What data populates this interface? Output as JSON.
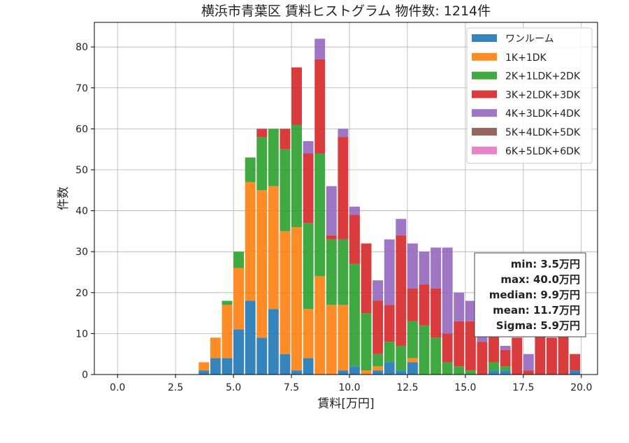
{
  "chart_data": {
    "type": "bar",
    "stacked": true,
    "title": "横浜市青葉区 賃料ヒストグラム 物件数: 1214件",
    "xlabel": "賃料[万円]",
    "ylabel": "件数",
    "xlim": [
      -1.0,
      20.7
    ],
    "ylim": [
      0,
      86
    ],
    "xticks": [
      0,
      2.5,
      5,
      7.5,
      10,
      12.5,
      15,
      17.5,
      20
    ],
    "xtick_labels": [
      "0.0",
      "2.5",
      "5.0",
      "7.5",
      "10.0",
      "12.5",
      "15.0",
      "17.5",
      "20.0"
    ],
    "yticks": [
      0,
      10,
      20,
      30,
      40,
      50,
      60,
      70,
      80
    ],
    "ytick_labels": [
      "0",
      "10",
      "20",
      "30",
      "40",
      "50",
      "60",
      "70",
      "80"
    ],
    "grid": true,
    "legend_position": "top-right",
    "bin_width": 0.5,
    "bin_starts": [
      3.5,
      4.0,
      4.5,
      5.0,
      5.5,
      6.0,
      6.5,
      7.0,
      7.5,
      8.0,
      8.5,
      9.0,
      9.5,
      10.0,
      10.5,
      11.0,
      11.5,
      12.0,
      12.5,
      13.0,
      13.5,
      14.0,
      14.5,
      15.0,
      15.5,
      16.0,
      16.5,
      17.0,
      17.5,
      18.0,
      18.5,
      19.0,
      19.5
    ],
    "series": [
      {
        "name": "ワンルーム",
        "color": "#1f77b4",
        "values": [
          1,
          4,
          4,
          11,
          18,
          9,
          16,
          5,
          1,
          4,
          0,
          0,
          1,
          2,
          0,
          1,
          3,
          1,
          3,
          0,
          0,
          0,
          0,
          0,
          0,
          1,
          1,
          0,
          0,
          0,
          0,
          0,
          1
        ]
      },
      {
        "name": "1K+1DK",
        "color": "#ff7f0e",
        "values": [
          2,
          5,
          13,
          15,
          29,
          36,
          30,
          30,
          35,
          12,
          24,
          17,
          16,
          0,
          1,
          1,
          0,
          0,
          1,
          0,
          0,
          0,
          0,
          0,
          0,
          0,
          0,
          0,
          0,
          0,
          0,
          0,
          0
        ]
      },
      {
        "name": "2K+1LDK+2DK",
        "color": "#2ca02c",
        "values": [
          0,
          0,
          1,
          4,
          6,
          13,
          14,
          20,
          25,
          21,
          30,
          16,
          16,
          25,
          14,
          3,
          5,
          6,
          9,
          12,
          9,
          3,
          2,
          1,
          0,
          2,
          1,
          0,
          0,
          0,
          0,
          0,
          0
        ]
      },
      {
        "name": "3K+2LDK+3DK",
        "color": "#d62728",
        "values": [
          0,
          0,
          0,
          0,
          0,
          2,
          0,
          5,
          14,
          17,
          23,
          1,
          25,
          12,
          17,
          13,
          9,
          27,
          8,
          10,
          12,
          7,
          11,
          12,
          8,
          7,
          4,
          9,
          1,
          10,
          9,
          10,
          4
        ]
      },
      {
        "name": "4K+3LDK+4DK",
        "color": "#9467bd",
        "values": [
          0,
          0,
          0,
          0,
          0,
          0,
          0,
          0,
          0,
          3,
          5,
          12,
          2,
          2,
          0,
          5,
          16,
          4,
          11,
          8,
          10,
          21,
          7,
          5,
          10,
          0,
          1,
          0,
          4,
          0,
          0,
          0,
          0
        ]
      },
      {
        "name": "5K+4LDK+5DK",
        "color": "#8c564b",
        "values": [
          0,
          0,
          0,
          0,
          0,
          0,
          0,
          0,
          0,
          0,
          0,
          0,
          0,
          0,
          0,
          0,
          0,
          0,
          0,
          0,
          0,
          0,
          0,
          0,
          0,
          0,
          0,
          0,
          0,
          0,
          0,
          0,
          0
        ]
      },
      {
        "name": "6K+5LDK+6DK",
        "color": "#e377c2",
        "values": [
          0,
          0,
          0,
          0,
          0,
          0,
          0,
          0,
          0,
          0,
          0,
          0,
          0,
          0,
          0,
          0,
          0,
          0,
          0,
          0,
          0,
          0,
          0,
          0,
          0,
          0,
          0,
          0,
          0,
          0,
          0,
          0,
          0
        ]
      }
    ],
    "stats": [
      {
        "label": "min: 3.5万円"
      },
      {
        "label": "max: 40.0万円"
      },
      {
        "label": "median: 9.9万円"
      },
      {
        "label": "mean: 11.7万円"
      },
      {
        "label": "Sigma: 5.9万円"
      }
    ]
  }
}
